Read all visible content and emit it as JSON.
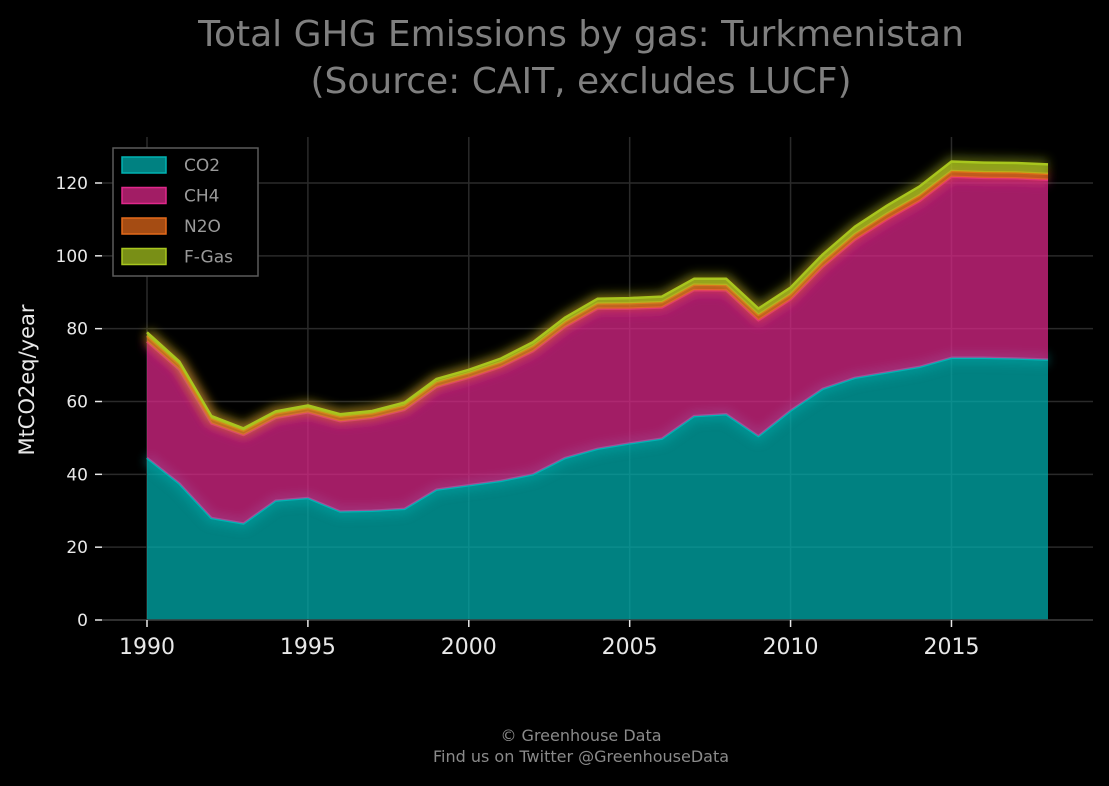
{
  "chart_data": {
    "type": "area",
    "stacked": true,
    "title_line1": "Total GHG Emissions by gas: Turkmenistan",
    "title_line2": "(Source: CAIT, excludes LUCF)",
    "ylabel": "MtCO2eq/year",
    "xlabel": "",
    "xlim": [
      1990,
      2018
    ],
    "ylim": [
      0,
      130
    ],
    "x_ticks": [
      1990,
      1995,
      2000,
      2005,
      2010,
      2015
    ],
    "y_ticks": [
      0,
      20,
      40,
      60,
      80,
      100,
      120
    ],
    "grid": true,
    "legend_position": "top-left",
    "x": [
      1990,
      1991,
      1992,
      1993,
      1994,
      1995,
      1996,
      1997,
      1998,
      1999,
      2000,
      2001,
      2002,
      2003,
      2004,
      2005,
      2006,
      2007,
      2008,
      2009,
      2010,
      2011,
      2012,
      2013,
      2014,
      2015,
      2016,
      2017,
      2018
    ],
    "series": [
      {
        "name": "CO2",
        "color": "#00b3b3",
        "values": [
          44.5,
          37.5,
          28.0,
          26.5,
          32.8,
          33.5,
          29.8,
          30.0,
          30.5,
          35.8,
          37.0,
          38.2,
          40.0,
          44.5,
          47.0,
          48.5,
          49.8,
          56.0,
          56.5,
          50.5,
          57.5,
          63.5,
          66.5,
          68.0,
          69.5,
          72.0,
          72.0,
          71.8,
          71.5
        ]
      },
      {
        "name": "CH4",
        "color": "#e0288c",
        "values": [
          32.0,
          31.3,
          26.0,
          24.3,
          22.7,
          23.5,
          24.8,
          25.5,
          27.2,
          28.2,
          29.5,
          31.3,
          33.8,
          36.0,
          38.5,
          37.0,
          36.0,
          34.6,
          34.0,
          31.8,
          30.5,
          33.5,
          37.9,
          42.0,
          45.5,
          49.7,
          49.4,
          49.5,
          49.4
        ]
      },
      {
        "name": "N2O",
        "color": "#e46a1a",
        "values": [
          1.5,
          1.4,
          1.3,
          1.2,
          1.2,
          1.2,
          1.2,
          1.2,
          1.2,
          1.3,
          1.3,
          1.3,
          1.4,
          1.4,
          1.4,
          1.5,
          1.5,
          1.5,
          1.5,
          1.5,
          1.5,
          1.5,
          1.6,
          1.6,
          1.6,
          1.6,
          1.6,
          1.6,
          1.6
        ]
      },
      {
        "name": "F-Gas",
        "color": "#a8c61e",
        "values": [
          1.0,
          0.8,
          0.7,
          0.6,
          0.6,
          0.7,
          0.7,
          0.7,
          0.8,
          0.9,
          0.9,
          1.0,
          1.1,
          1.2,
          1.3,
          1.4,
          1.5,
          1.6,
          1.7,
          1.7,
          1.8,
          1.9,
          2.0,
          2.2,
          2.4,
          2.6,
          2.6,
          2.6,
          2.6
        ]
      }
    ]
  },
  "footer": {
    "line1": "© Greenhouse Data",
    "line2": "Find us on Twitter @GreenhouseData"
  }
}
